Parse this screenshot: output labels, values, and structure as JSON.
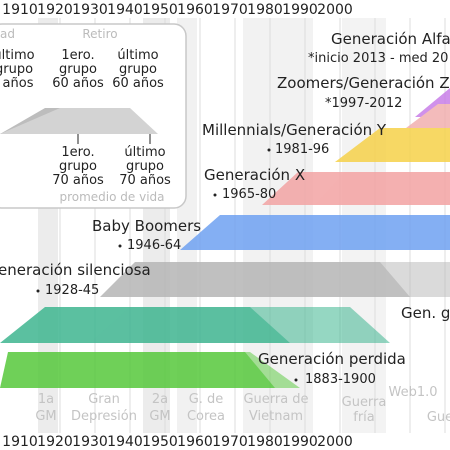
{
  "axis": {
    "years_top": [
      "1910",
      "1920",
      "1930",
      "1940",
      "1950",
      "1960",
      "1970",
      "1980",
      "1990",
      "2000"
    ],
    "years_bottom": [
      "1910",
      "1920",
      "1930",
      "1940",
      "1950",
      "1960",
      "1970",
      "1980",
      "1990",
      "2000"
    ]
  },
  "colors": {
    "alpha": "#c87ee8",
    "zoomers": "#f0a6a6",
    "millennials": "#f5d54a",
    "genx": "#f5a6a6",
    "boomers": "#6fa2f2",
    "silent": "#b3b3b3",
    "gi": "#3fb690",
    "lost": "#56c83c"
  },
  "legend": {
    "top_left_fragment": "ad",
    "retiro": "Retiro",
    "row1": [
      {
        "l1": "último",
        "l2": "grupo",
        "l3": "años"
      },
      {
        "l1": "1ero.",
        "l2": "grupo",
        "l3": "60 años"
      },
      {
        "l1": "último",
        "l2": "grupo",
        "l3": "60 años"
      }
    ],
    "row2": [
      {
        "l1": "1ero.",
        "l2": "grupo",
        "l3": "70 años"
      },
      {
        "l1": "último",
        "l2": "grupo",
        "l3": "70 años"
      }
    ],
    "footer": "promedio de vida"
  },
  "generations": [
    {
      "id": "alpha",
      "name": "Generación Alfa",
      "range": "*inicio 2013 - med 20"
    },
    {
      "id": "zoomers",
      "name": "Zoomers/Generación Z",
      "range": "*1997-2012"
    },
    {
      "id": "millennials",
      "name": "Millennials/Generación Y",
      "range": "1981-96"
    },
    {
      "id": "genx",
      "name": "Generación X",
      "range": "1965-80"
    },
    {
      "id": "boomers",
      "name": "Baby Boomers",
      "range": "1946-64"
    },
    {
      "id": "silent",
      "name": "eneración silenciosa",
      "range": "1928-45"
    },
    {
      "id": "gi",
      "name": "Gen. g",
      "range": ""
    },
    {
      "id": "lost",
      "name": "Generación perdida",
      "range": "1883-1900"
    }
  ],
  "events": [
    {
      "l1": "1a",
      "l2": "GM"
    },
    {
      "l1": "Gran",
      "l2": "Depresión"
    },
    {
      "l1": "2a",
      "l2": "GM"
    },
    {
      "l1": "G. de",
      "l2": "Corea"
    },
    {
      "l1": "Guerra de",
      "l2": "Vietnam"
    },
    {
      "l1": "Guerra",
      "l2": "fría"
    },
    {
      "l1": "Web1.0",
      "l2": ""
    },
    {
      "l1": "Gue",
      "l2": ""
    }
  ]
}
